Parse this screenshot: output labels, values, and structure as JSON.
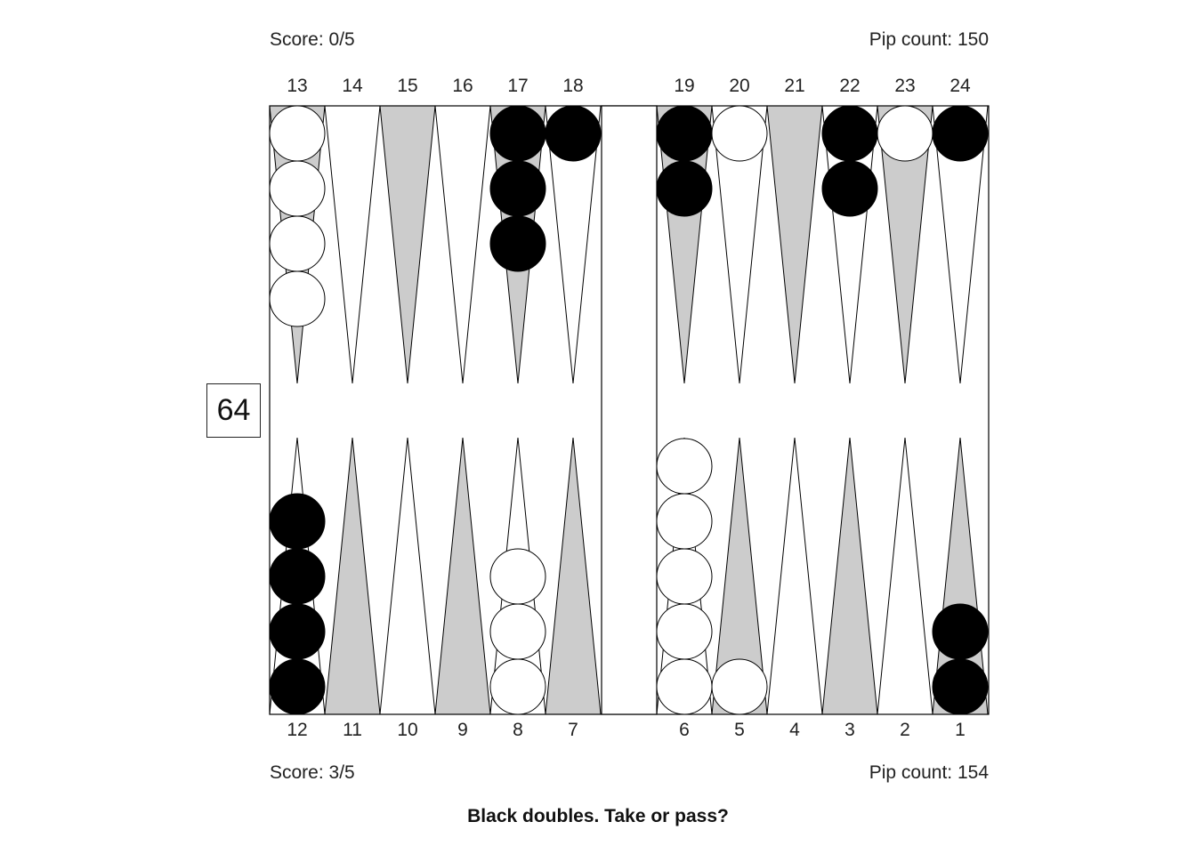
{
  "top": {
    "score": "Score: 0/5",
    "pip": "Pip count: 150"
  },
  "bottom": {
    "score": "Score: 3/5",
    "pip": "Pip count: 154"
  },
  "cube": {
    "value": "64"
  },
  "question": "Black doubles. Take or pass?",
  "colors": {
    "shaded_point": "#cccccc",
    "black_checker": "#000000",
    "white_checker": "#ffffff",
    "line": "#000000"
  },
  "points_top": [
    "13",
    "14",
    "15",
    "16",
    "17",
    "18",
    "19",
    "20",
    "21",
    "22",
    "23",
    "24"
  ],
  "points_bottom": [
    "12",
    "11",
    "10",
    "9",
    "8",
    "7",
    "6",
    "5",
    "4",
    "3",
    "2",
    "1"
  ],
  "position": {
    "top": [
      {
        "point": 13,
        "color": "white",
        "count": 4
      },
      {
        "point": 17,
        "color": "black",
        "count": 3
      },
      {
        "point": 18,
        "color": "black",
        "count": 1
      },
      {
        "point": 19,
        "color": "black",
        "count": 2
      },
      {
        "point": 20,
        "color": "white",
        "count": 1
      },
      {
        "point": 22,
        "color": "black",
        "count": 2
      },
      {
        "point": 23,
        "color": "white",
        "count": 1
      },
      {
        "point": 24,
        "color": "black",
        "count": 1
      }
    ],
    "bottom": [
      {
        "point": 12,
        "color": "black",
        "count": 4
      },
      {
        "point": 8,
        "color": "white",
        "count": 3
      },
      {
        "point": 6,
        "color": "white",
        "count": 5
      },
      {
        "point": 5,
        "color": "white",
        "count": 1
      },
      {
        "point": 1,
        "color": "black",
        "count": 2
      }
    ]
  }
}
